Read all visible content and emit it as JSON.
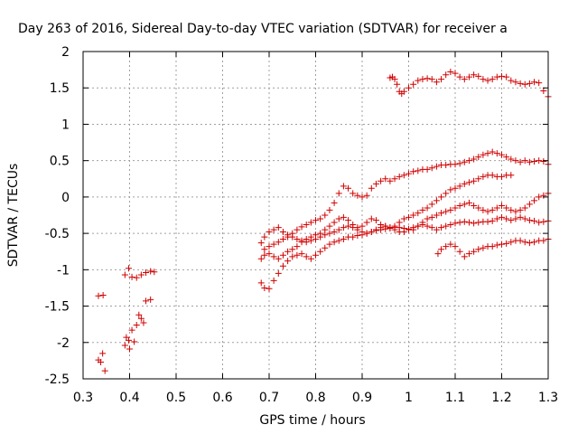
{
  "chart_data": {
    "type": "scatter",
    "title": "Day 263 of 2016, Sidereal Day-to-day VTEC variation (SDTVAR) for receiver a",
    "xlabel": "GPS time / hours",
    "ylabel": "SDTVAR / TECUs",
    "xlim": [
      0.3,
      1.3
    ],
    "ylim": [
      -2.5,
      2
    ],
    "x_ticks": [
      0.3,
      0.4,
      0.5,
      0.6,
      0.7,
      0.8,
      0.9,
      1,
      1.1,
      1.2,
      1.3
    ],
    "x_tick_labels": [
      "0.3",
      "0.4",
      "0.5",
      "0.6",
      "0.7",
      "0.8",
      "0.9",
      "1",
      "1.1",
      "1.2",
      "1.3"
    ],
    "y_ticks": [
      -2.5,
      -2,
      -1.5,
      -1,
      -0.5,
      0,
      0.5,
      1,
      1.5,
      2
    ],
    "y_tick_labels": [
      "-2.5",
      "-2",
      "-1.5",
      "-1",
      "-0.5",
      "0",
      "0.5",
      "1",
      "1.5",
      "2"
    ],
    "grid": true,
    "marker": "+",
    "color": "#d00000",
    "series": [
      {
        "x": [
          0.333,
          0.343,
          0.338,
          0.347,
          0.333,
          0.342
        ],
        "y": [
          -1.36,
          -1.35,
          -2.27,
          -2.39,
          -2.24,
          -2.15
        ]
      },
      {
        "x": [
          0.39,
          0.398,
          0.405,
          0.415,
          0.425,
          0.435,
          0.445,
          0.453,
          0.39,
          0.398,
          0.405,
          0.415,
          0.425,
          0.435,
          0.445,
          0.393,
          0.4,
          0.41,
          0.42,
          0.43
        ],
        "y": [
          -1.07,
          -0.98,
          -1.1,
          -1.11,
          -1.07,
          -1.04,
          -1.02,
          -1.03,
          -2.04,
          -1.97,
          -1.83,
          -1.76,
          -1.67,
          -1.43,
          -1.41,
          -1.93,
          -2.09,
          -1.99,
          -1.62,
          -1.73
        ]
      },
      {
        "x": [
          0.683,
          0.69,
          0.7,
          0.71,
          0.72,
          0.73,
          0.74,
          0.75,
          0.76,
          0.77,
          0.78,
          0.79,
          0.8,
          0.81,
          0.82,
          0.83,
          0.84,
          0.85,
          0.86,
          0.87,
          0.88,
          0.89,
          0.9,
          0.91,
          0.92,
          0.93,
          0.94,
          0.95,
          0.96,
          0.97,
          0.98,
          0.99,
          1.0,
          1.01,
          1.02,
          1.03,
          1.04,
          1.05,
          1.06,
          1.07,
          1.08,
          1.09,
          1.1,
          1.11,
          1.12,
          1.13,
          1.14,
          1.15,
          1.16,
          1.17,
          1.18,
          1.19,
          1.2,
          1.21,
          1.22,
          1.23,
          1.24,
          1.25,
          1.26,
          1.27,
          1.28,
          1.29,
          1.3
        ],
        "y": [
          -0.63,
          -0.55,
          -0.48,
          -0.45,
          -0.42,
          -0.48,
          -0.52,
          -0.5,
          -0.45,
          -0.41,
          -0.38,
          -0.35,
          -0.32,
          -0.3,
          -0.25,
          -0.18,
          -0.08,
          0.05,
          0.15,
          0.12,
          0.05,
          0.02,
          0.0,
          0.02,
          0.12,
          0.18,
          0.22,
          0.25,
          0.22,
          0.25,
          0.28,
          0.3,
          0.32,
          0.35,
          0.36,
          0.38,
          0.38,
          0.4,
          0.42,
          0.44,
          0.44,
          0.45,
          0.45,
          0.46,
          0.48,
          0.5,
          0.52,
          0.55,
          0.58,
          0.6,
          0.62,
          0.6,
          0.58,
          0.55,
          0.52,
          0.5,
          0.48,
          0.5,
          0.48,
          0.49,
          0.5,
          0.49,
          0.45
        ]
      },
      {
        "x": [
          0.683,
          0.69,
          0.7,
          0.71,
          0.72,
          0.73,
          0.74,
          0.75,
          0.76,
          0.77,
          0.78,
          0.79,
          0.8,
          0.81,
          0.82,
          0.83,
          0.84,
          0.85,
          0.86,
          0.87,
          0.88,
          0.89,
          0.9,
          0.91,
          0.92,
          0.93,
          0.94,
          0.95,
          0.96,
          0.97,
          0.98,
          0.99,
          1.0,
          1.01,
          1.02,
          1.03,
          1.04,
          1.05,
          1.06,
          1.07,
          1.08,
          1.09,
          1.1,
          1.11,
          1.12,
          1.13,
          1.14,
          1.15,
          1.16,
          1.17,
          1.18,
          1.19,
          1.2,
          1.21,
          1.22
        ],
        "y": [
          -0.85,
          -0.8,
          -0.78,
          -0.82,
          -0.85,
          -0.8,
          -0.75,
          -0.72,
          -0.68,
          -0.62,
          -0.58,
          -0.55,
          -0.52,
          -0.5,
          -0.45,
          -0.4,
          -0.35,
          -0.3,
          -0.28,
          -0.32,
          -0.38,
          -0.42,
          -0.4,
          -0.35,
          -0.3,
          -0.32,
          -0.38,
          -0.4,
          -0.42,
          -0.4,
          -0.35,
          -0.3,
          -0.28,
          -0.25,
          -0.22,
          -0.18,
          -0.15,
          -0.1,
          -0.05,
          0.0,
          0.05,
          0.1,
          0.12,
          0.15,
          0.18,
          0.2,
          0.22,
          0.25,
          0.28,
          0.3,
          0.3,
          0.28,
          0.28,
          0.3,
          0.3
        ]
      },
      {
        "x": [
          0.683,
          0.69,
          0.7,
          0.71,
          0.72,
          0.73,
          0.74,
          0.75,
          0.76,
          0.77,
          0.78,
          0.79,
          0.8,
          0.81,
          0.82,
          0.83,
          0.84,
          0.85,
          0.86,
          0.87,
          0.88,
          0.89,
          0.9,
          0.91,
          0.92,
          0.93,
          0.94,
          0.95,
          0.96,
          0.97,
          0.98,
          0.99,
          1.0,
          1.01,
          1.02,
          1.03,
          1.04,
          1.05,
          1.06,
          1.07,
          1.08,
          1.09,
          1.1,
          1.11,
          1.12,
          1.13,
          1.14,
          1.15,
          1.16,
          1.17,
          1.18,
          1.19,
          1.2,
          1.21,
          1.22,
          1.23,
          1.24,
          1.25,
          1.26,
          1.27,
          1.28,
          1.29,
          1.3
        ],
        "y": [
          -1.18,
          -1.25,
          -1.26,
          -1.15,
          -1.05,
          -0.95,
          -0.88,
          -0.82,
          -0.8,
          -0.78,
          -0.82,
          -0.85,
          -0.8,
          -0.75,
          -0.7,
          -0.65,
          -0.62,
          -0.6,
          -0.58,
          -0.55,
          -0.55,
          -0.53,
          -0.52,
          -0.5,
          -0.48,
          -0.46,
          -0.45,
          -0.44,
          -0.43,
          -0.42,
          -0.42,
          -0.43,
          -0.44,
          -0.45,
          -0.4,
          -0.35,
          -0.3,
          -0.28,
          -0.25,
          -0.22,
          -0.2,
          -0.18,
          -0.15,
          -0.12,
          -0.1,
          -0.08,
          -0.12,
          -0.15,
          -0.18,
          -0.2,
          -0.18,
          -0.15,
          -0.12,
          -0.15,
          -0.18,
          -0.2,
          -0.18,
          -0.15,
          -0.1,
          -0.05,
          0.0,
          0.02,
          0.05
        ]
      },
      {
        "x": [
          0.69,
          0.7,
          0.71,
          0.72,
          0.73,
          0.74,
          0.75,
          0.76,
          0.77,
          0.78,
          0.79,
          0.8,
          0.81,
          0.82,
          0.83,
          0.84,
          0.85,
          0.86,
          0.87,
          0.88,
          0.89,
          0.9,
          0.91,
          0.92,
          0.93,
          0.94,
          0.95,
          0.96,
          0.97,
          0.98,
          0.99,
          1.0,
          1.01,
          1.02,
          1.03,
          1.04,
          1.05,
          1.06,
          1.07,
          1.08,
          1.09,
          1.1,
          1.11,
          1.12,
          1.13,
          1.14,
          1.15,
          1.16,
          1.17,
          1.18,
          1.19,
          1.2,
          1.21,
          1.22,
          1.23,
          1.24,
          1.25,
          1.26,
          1.27,
          1.28,
          1.29,
          1.3
        ],
        "y": [
          -0.72,
          -0.68,
          -0.65,
          -0.62,
          -0.58,
          -0.55,
          -0.55,
          -0.58,
          -0.6,
          -0.62,
          -0.6,
          -0.58,
          -0.55,
          -0.52,
          -0.5,
          -0.48,
          -0.45,
          -0.42,
          -0.4,
          -0.42,
          -0.45,
          -0.48,
          -0.5,
          -0.48,
          -0.45,
          -0.42,
          -0.4,
          -0.42,
          -0.45,
          -0.48,
          -0.48,
          -0.45,
          -0.42,
          -0.4,
          -0.38,
          -0.4,
          -0.42,
          -0.45,
          -0.42,
          -0.4,
          -0.38,
          -0.36,
          -0.35,
          -0.34,
          -0.35,
          -0.36,
          -0.35,
          -0.34,
          -0.34,
          -0.33,
          -0.3,
          -0.28,
          -0.3,
          -0.32,
          -0.3,
          -0.28,
          -0.3,
          -0.32,
          -0.33,
          -0.35,
          -0.34,
          -0.33
        ]
      },
      {
        "x": [
          1.063,
          1.07,
          1.08,
          1.09,
          1.1,
          1.11,
          1.12,
          1.13,
          1.14,
          1.15,
          1.16,
          1.17,
          1.18,
          1.19,
          1.2,
          1.21,
          1.22,
          1.23,
          1.24,
          1.25,
          1.26,
          1.27,
          1.28,
          1.29,
          1.3
        ],
        "y": [
          -0.78,
          -0.72,
          -0.68,
          -0.65,
          -0.68,
          -0.75,
          -0.82,
          -0.78,
          -0.75,
          -0.72,
          -0.7,
          -0.68,
          -0.68,
          -0.66,
          -0.65,
          -0.64,
          -0.62,
          -0.6,
          -0.6,
          -0.62,
          -0.63,
          -0.62,
          -0.6,
          -0.6,
          -0.58
        ]
      },
      {
        "x": [
          0.96,
          0.965,
          0.97,
          0.975,
          0.98,
          0.985,
          0.99,
          1.0,
          1.01,
          1.02,
          1.03,
          1.04,
          1.05,
          1.06,
          1.07,
          1.08,
          1.09,
          1.1,
          1.11,
          1.12,
          1.13,
          1.14,
          1.15,
          1.16,
          1.17,
          1.18,
          1.19,
          1.2,
          1.21,
          1.22,
          1.23,
          1.24,
          1.25,
          1.26,
          1.27,
          1.28,
          1.29,
          1.3
        ],
        "y": [
          1.64,
          1.65,
          1.62,
          1.55,
          1.45,
          1.42,
          1.45,
          1.5,
          1.55,
          1.6,
          1.62,
          1.63,
          1.62,
          1.58,
          1.62,
          1.68,
          1.72,
          1.7,
          1.65,
          1.62,
          1.65,
          1.68,
          1.66,
          1.62,
          1.6,
          1.62,
          1.65,
          1.66,
          1.65,
          1.6,
          1.58,
          1.56,
          1.55,
          1.56,
          1.58,
          1.57,
          1.46,
          1.38
        ]
      }
    ]
  }
}
